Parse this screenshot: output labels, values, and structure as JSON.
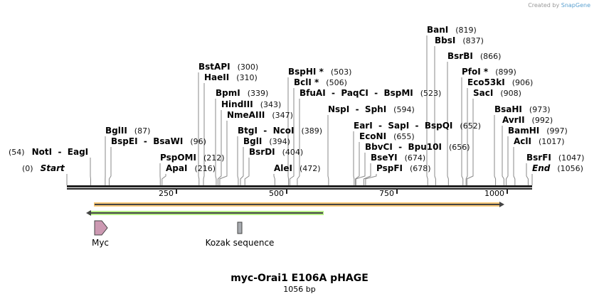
{
  "credit": {
    "prefix": "Created by",
    "brand": "SnapGene"
  },
  "title": "myc-Orai1 E106A pHAGE",
  "length_label": "1056 bp",
  "length": 1056,
  "ticks": [
    "250",
    "500",
    "750",
    "1000"
  ],
  "sites": [
    {
      "name": "Start",
      "pos": "(0)",
      "bp": 0,
      "side": "left",
      "italic": true
    },
    {
      "name": "NotI  -  EagI",
      "pos": "(54)",
      "bp": 54,
      "side": "left"
    },
    {
      "name": "BglII",
      "pos": "(87)",
      "bp": 87
    },
    {
      "name": "BspEI  -  BsaWI",
      "pos": "(96)",
      "bp": 96
    },
    {
      "name": "PspOMI",
      "pos": "(212)",
      "bp": 212
    },
    {
      "name": "ApaI",
      "pos": "(216)",
      "bp": 216
    },
    {
      "name": "BstAPI",
      "pos": "(300)",
      "bp": 300
    },
    {
      "name": "HaeII",
      "pos": "(310)",
      "bp": 310
    },
    {
      "name": "BpmI",
      "pos": "(339)",
      "bp": 339
    },
    {
      "name": "HindIII",
      "pos": "(343)",
      "bp": 343
    },
    {
      "name": "NmeAIII",
      "pos": "(347)",
      "bp": 347
    },
    {
      "name": "BtgI  -  NcoI",
      "pos": "(389)",
      "bp": 389
    },
    {
      "name": "BglI",
      "pos": "(394)",
      "bp": 394
    },
    {
      "name": "BsrDI",
      "pos": "(404)",
      "bp": 404
    },
    {
      "name": "AleI",
      "pos": "(472)",
      "bp": 472
    },
    {
      "name": "BspHI *",
      "pos": "(503)",
      "bp": 503
    },
    {
      "name": "BclI *",
      "pos": "(506)",
      "bp": 506
    },
    {
      "name": "BfuAI  -  PaqCI  -  BspMI",
      "pos": "(523)",
      "bp": 523
    },
    {
      "name": "NspI  -  SphI",
      "pos": "(594)",
      "bp": 594
    },
    {
      "name": "EarI  -  SapI  -  BspQI",
      "pos": "(652)",
      "bp": 652
    },
    {
      "name": "EcoNI",
      "pos": "(655)",
      "bp": 655
    },
    {
      "name": "BbvCI  -  Bpu10I",
      "pos": "(656)",
      "bp": 656
    },
    {
      "name": "BseYI",
      "pos": "(674)",
      "bp": 674
    },
    {
      "name": "PspFI",
      "pos": "(678)",
      "bp": 678
    },
    {
      "name": "BanI",
      "pos": "(819)",
      "bp": 819
    },
    {
      "name": "BbsI",
      "pos": "(837)",
      "bp": 837
    },
    {
      "name": "BsrBI",
      "pos": "(866)",
      "bp": 866
    },
    {
      "name": "PfoI *",
      "pos": "(899)",
      "bp": 899
    },
    {
      "name": "Eco53kI",
      "pos": "(906)",
      "bp": 906
    },
    {
      "name": "SacI",
      "pos": "(908)",
      "bp": 908
    },
    {
      "name": "BsaHI",
      "pos": "(973)",
      "bp": 973
    },
    {
      "name": "AvrII",
      "pos": "(992)",
      "bp": 992
    },
    {
      "name": "BamHI",
      "pos": "(997)",
      "bp": 997
    },
    {
      "name": "AclI",
      "pos": "(1017)",
      "bp": 1017
    },
    {
      "name": "BsrFI",
      "pos": "(1047)",
      "bp": 1047
    },
    {
      "name": "End",
      "pos": "(1056)",
      "bp": 1056,
      "italic": true
    }
  ],
  "features": [
    {
      "name": "Myc",
      "color": "#cc99b2"
    },
    {
      "name": "Kozak sequence",
      "color": "#a8abb0"
    }
  ],
  "orfs": [
    {
      "direction": "forward",
      "color": "#f8c878"
    },
    {
      "direction": "reverse",
      "color": "#b8f088"
    }
  ]
}
